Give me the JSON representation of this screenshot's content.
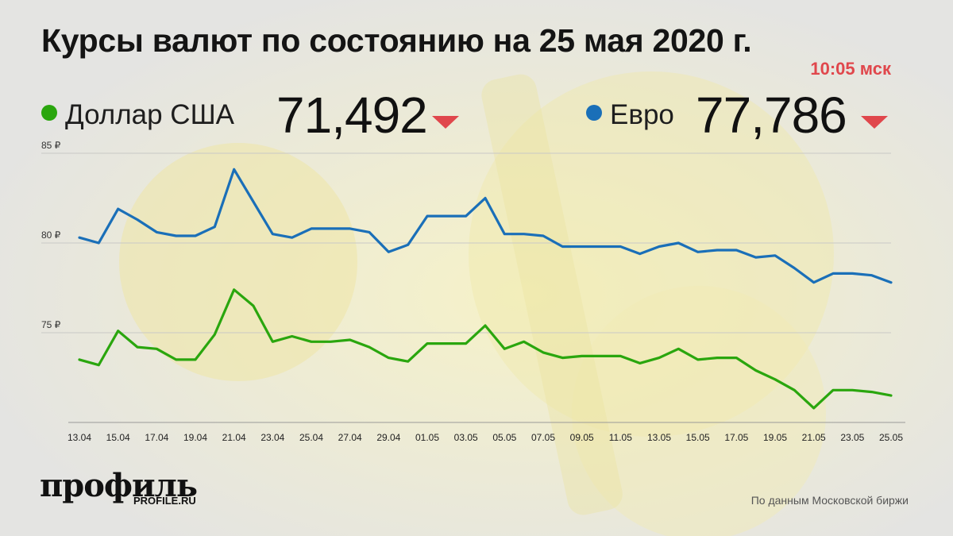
{
  "title": "Курсы валют по состоянию на 25 мая 2020 г.",
  "time": "10:05 мск",
  "legend": [
    {
      "name": "Доллар США",
      "value": "71,492",
      "color": "#2aa60e",
      "trend": "down"
    },
    {
      "name": "Евро",
      "value": "77,786",
      "color": "#1a6fb8",
      "trend": "down"
    }
  ],
  "source": "По данным Московской биржи",
  "logo": {
    "name": "профиль",
    "site": "PROFILE.RU"
  },
  "chart_data": {
    "type": "line",
    "x_labels": [
      "13.04",
      "15.04",
      "17.04",
      "19.04",
      "21.04",
      "23.04",
      "25.04",
      "27.04",
      "29.04",
      "01.05",
      "03.05",
      "05.05",
      "07.05",
      "09.05",
      "11.05",
      "13.05",
      "15.05",
      "17.05",
      "19.05",
      "21.05",
      "23.05",
      "25.05"
    ],
    "y_ticks": [
      "85 ₽",
      "80 ₽",
      "75 ₽"
    ],
    "ylim": [
      70,
      86
    ],
    "grid": true,
    "series": [
      {
        "name": "Евро",
        "color": "#1a6fb8",
        "values": [
          80.3,
          80.0,
          81.9,
          81.3,
          80.6,
          80.4,
          80.4,
          80.9,
          84.1,
          82.3,
          80.5,
          80.3,
          80.8,
          80.8,
          80.8,
          80.6,
          79.5,
          79.9,
          81.5,
          81.5,
          81.5,
          82.5,
          80.5,
          80.5,
          80.4,
          79.8,
          79.8,
          79.8,
          79.8,
          79.4,
          79.8,
          80.0,
          79.5,
          79.6,
          79.6,
          79.2,
          79.3,
          78.6,
          77.8,
          78.3,
          78.3,
          78.2,
          77.8
        ]
      },
      {
        "name": "Доллар США",
        "color": "#2aa60e",
        "values": [
          73.5,
          73.2,
          75.1,
          74.2,
          74.1,
          73.5,
          73.5,
          74.9,
          77.4,
          76.5,
          74.5,
          74.8,
          74.5,
          74.5,
          74.6,
          74.2,
          73.6,
          73.4,
          74.4,
          74.4,
          74.4,
          75.4,
          74.1,
          74.5,
          73.9,
          73.6,
          73.7,
          73.7,
          73.7,
          73.3,
          73.6,
          74.1,
          73.5,
          73.6,
          73.6,
          72.9,
          72.4,
          71.8,
          70.8,
          71.8,
          71.8,
          71.7,
          71.5
        ]
      }
    ]
  }
}
